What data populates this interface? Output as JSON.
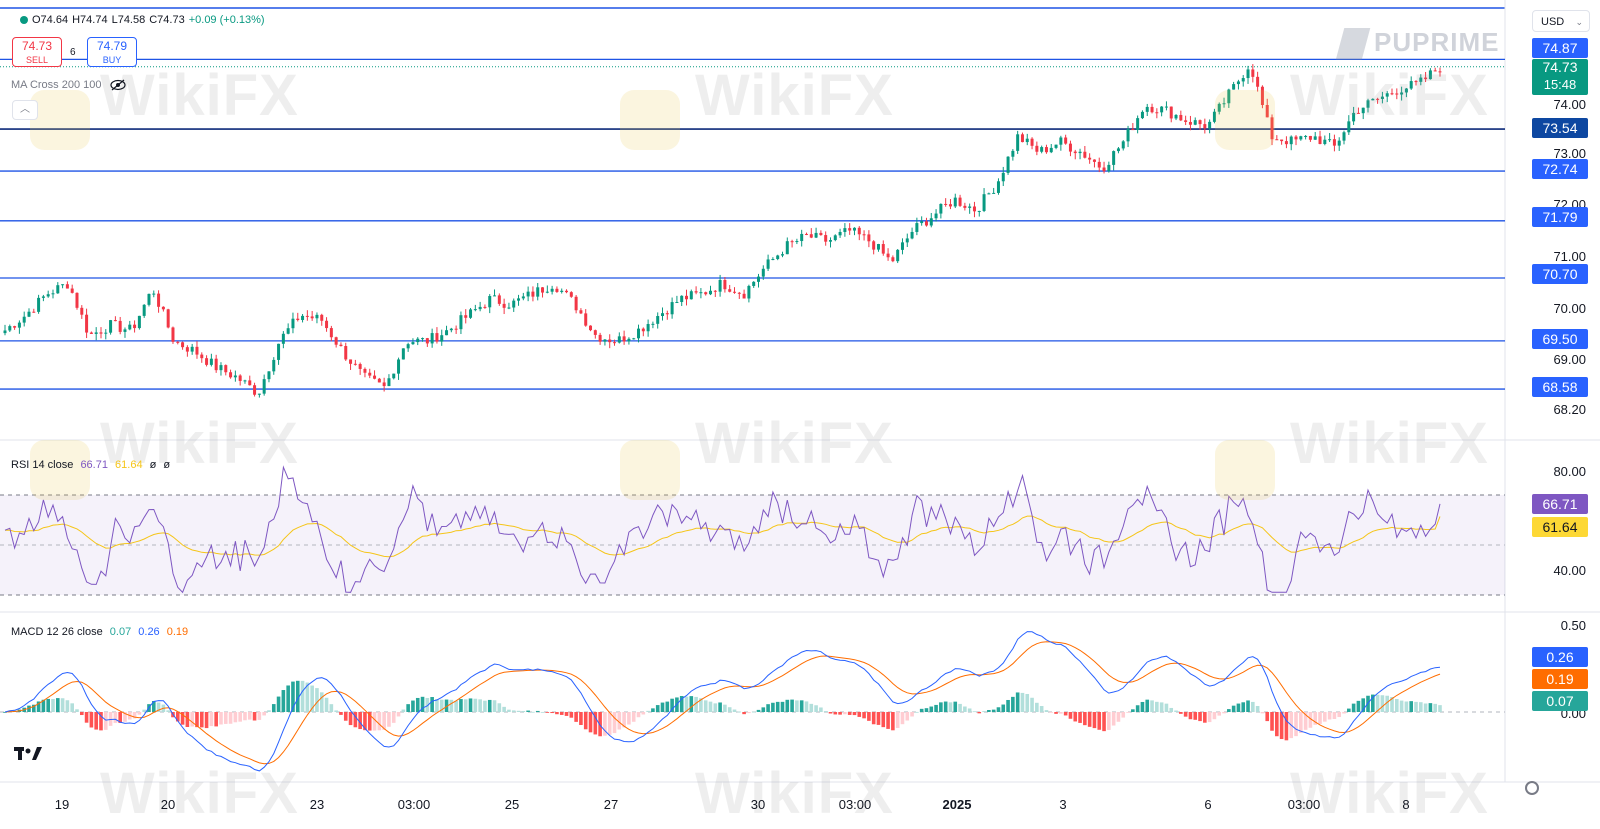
{
  "header": {
    "ohlc": {
      "open": "O74.64",
      "high": "H74.74",
      "low": "L74.58",
      "close": "C74.73",
      "change": "+0.09 (+0.13%)"
    },
    "sell": {
      "price": "74.73",
      "label": "SELL"
    },
    "buy": {
      "price": "74.79",
      "label": "BUY"
    },
    "spread": "6",
    "indicator": "MA Cross 200 100",
    "currency": "USD",
    "brand": "PUPRIME"
  },
  "watermark_text": "WikiFX",
  "price_axis": {
    "ticks": [
      "74.00",
      "73.00",
      "72.00",
      "71.00",
      "70.00",
      "69.00",
      "68.20"
    ],
    "tags": [
      {
        "value": "74.87",
        "color": "#2962ff"
      },
      {
        "value": "73.54",
        "color": "#0d47a1"
      },
      {
        "value": "72.74",
        "color": "#2962ff"
      },
      {
        "value": "71.79",
        "color": "#2962ff"
      },
      {
        "value": "70.70",
        "color": "#2962ff"
      },
      {
        "value": "69.50",
        "color": "#2962ff"
      },
      {
        "value": "68.58",
        "color": "#2962ff"
      }
    ],
    "current": {
      "value": "74.73",
      "countdown": "15:48",
      "color": "#089981"
    }
  },
  "rsi": {
    "legend": {
      "name": "RSI 14 close",
      "rsi": "66.71",
      "ma": "61.64",
      "extra1": "ø",
      "extra2": "ø"
    },
    "ticks": [
      "80.00",
      "40.00"
    ],
    "tags": [
      {
        "value": "66.71",
        "color": "#7e57c2",
        "text": "#ffffff"
      },
      {
        "value": "61.64",
        "color": "#fdd835",
        "text": "#131722"
      }
    ]
  },
  "macd": {
    "legend": {
      "name": "MACD 12 26 close",
      "hist": "0.07",
      "macd": "0.26",
      "signal": "0.19"
    },
    "ticks": [
      "0.50",
      "0.00"
    ],
    "tags": [
      {
        "value": "0.26",
        "color": "#2962ff"
      },
      {
        "value": "0.19",
        "color": "#ff6d00"
      },
      {
        "value": "0.07",
        "color": "#26a69a"
      }
    ]
  },
  "time_axis": [
    "19",
    "20",
    "23",
    "03:00",
    "25",
    "27",
    "30",
    "03:00",
    "2025",
    "3",
    "6",
    "03:00",
    "8"
  ],
  "colors": {
    "up": "#089981",
    "down": "#f23645",
    "level_line": "#1e53e5",
    "rsi_line": "#7e57c2",
    "rsi_ma": "#f5c518",
    "macd_line": "#2962ff",
    "signal_line": "#ff6d00"
  },
  "chart_data": [
    {
      "type": "candlestick",
      "title": "",
      "support_resistance_levels": [
        74.87,
        73.54,
        72.74,
        71.79,
        70.7,
        69.5,
        68.58
      ],
      "ylim": [
        68.2,
        75.1
      ],
      "x": [
        "19",
        "20",
        "23",
        "03:00",
        "25",
        "27",
        "30",
        "03:00",
        "2025",
        "3",
        "6",
        "03:00",
        "8"
      ],
      "close_path": [
        69.7,
        70.0,
        70.4,
        70.6,
        69.6,
        69.8,
        69.7,
        70.5,
        69.5,
        69.3,
        69.0,
        68.8,
        68.5,
        69.5,
        70.0,
        69.9,
        69.3,
        68.8,
        68.6,
        69.5,
        69.5,
        69.7,
        70.0,
        70.3,
        70.2,
        70.4,
        70.6,
        70.2,
        69.6,
        69.5,
        69.7,
        70.0,
        70.3,
        70.4,
        70.6,
        70.4,
        70.9,
        71.3,
        71.5,
        71.4,
        71.6,
        71.4,
        71.0,
        71.6,
        71.9,
        72.2,
        72.0,
        72.5,
        73.4,
        73.1,
        73.3,
        73.1,
        72.8,
        73.3,
        74.0,
        73.9,
        73.7,
        73.6,
        74.2,
        74.8,
        73.4,
        73.3,
        73.4,
        73.2,
        73.9,
        74.1,
        74.3,
        74.4,
        74.73
      ]
    },
    {
      "type": "line",
      "name": "RSI 14 close",
      "ylim": [
        30,
        85
      ],
      "levels": [
        70,
        50,
        30
      ],
      "series": [
        {
          "name": "RSI",
          "last": 66.71
        },
        {
          "name": "RSI MA",
          "last": 61.64
        }
      ]
    },
    {
      "type": "line",
      "name": "MACD 12 26 close",
      "series": [
        {
          "name": "MACD",
          "last": 0.26
        },
        {
          "name": "Signal",
          "last": 0.19
        },
        {
          "name": "Histogram",
          "last": 0.07
        }
      ]
    }
  ]
}
